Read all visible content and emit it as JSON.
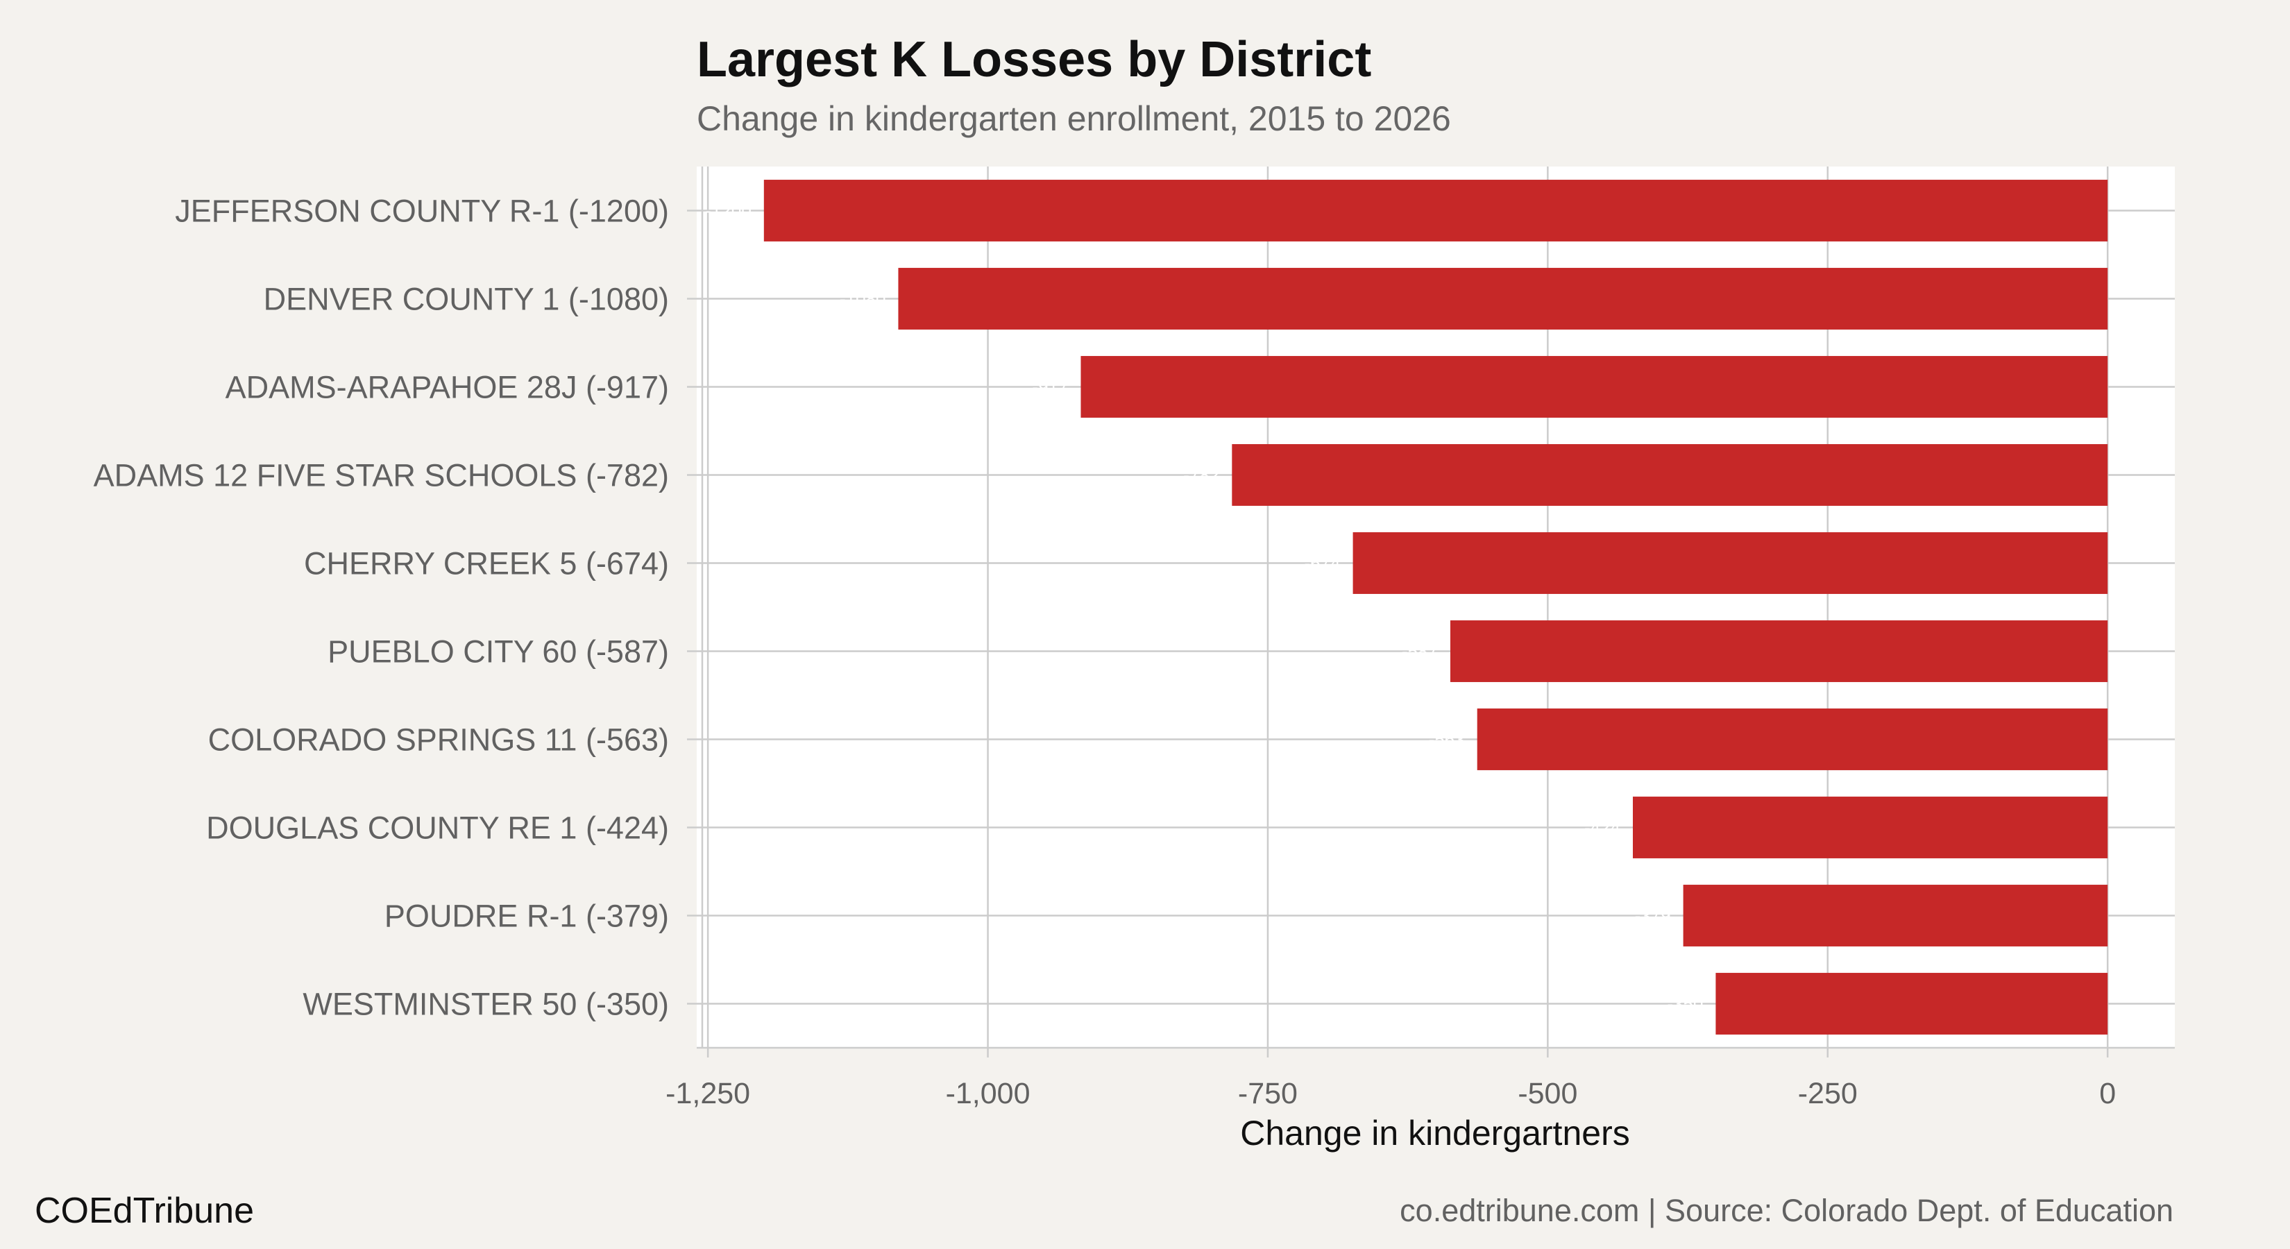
{
  "chart_data": {
    "type": "bar",
    "orientation": "horizontal",
    "title": "Largest K Losses by District",
    "subtitle": "Change in kindergarten enrollment, 2015 to 2026",
    "xlabel": "Change in kindergartners",
    "ylabel": "",
    "categories": [
      "JEFFERSON COUNTY R-1 (-1200)",
      "DENVER COUNTY 1 (-1080)",
      "ADAMS-ARAPAHOE 28J (-917)",
      "ADAMS 12 FIVE STAR SCHOOLS (-782)",
      "CHERRY CREEK 5 (-674)",
      "PUEBLO CITY 60 (-587)",
      "COLORADO SPRINGS 11 (-563)",
      "DOUGLAS COUNTY RE 1 (-424)",
      "POUDRE R-1 (-379)",
      "WESTMINSTER 50 (-350)"
    ],
    "values": [
      -1200,
      -1080,
      -917,
      -782,
      -674,
      -587,
      -563,
      -424,
      -379,
      -350
    ],
    "xlim": [
      -1260,
      60
    ],
    "xticks": [
      -1250,
      -1000,
      -750,
      -500,
      -250,
      0
    ],
    "xtick_labels": [
      "-1,250",
      "-1,000",
      "-750",
      "-500",
      "-250",
      "0"
    ],
    "grid": true,
    "bar_color": "#c62828",
    "panel_color": "#ffffff",
    "background_color": "#f4f2ee",
    "grid_color": "#cccccc"
  },
  "footer": {
    "brand": "COEdTribune",
    "source": "co.edtribune.com | Source: Colorado Dept. of Education"
  }
}
